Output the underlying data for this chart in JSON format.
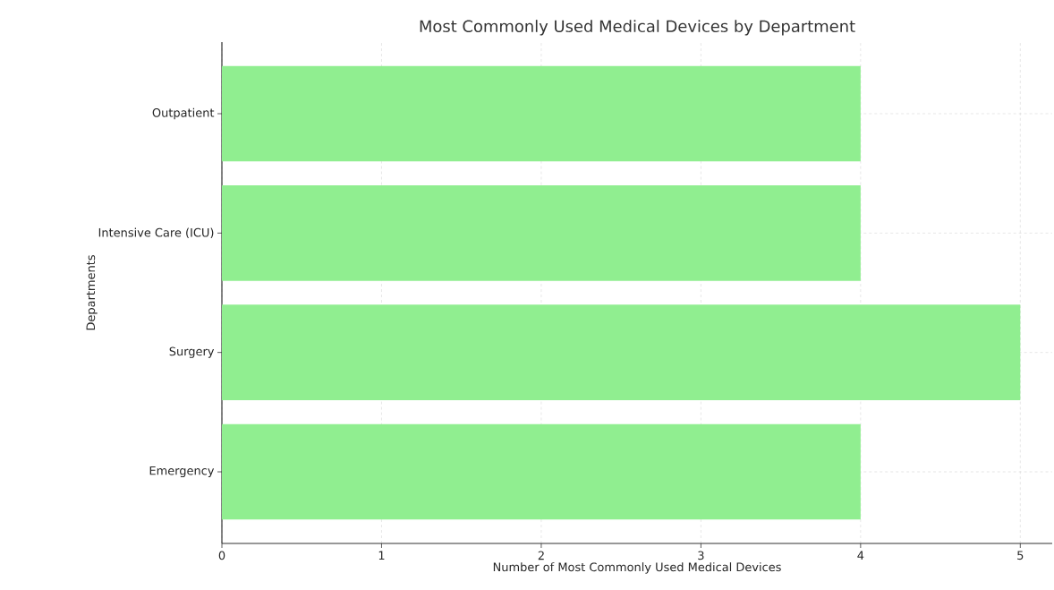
{
  "chart_data": {
    "type": "bar",
    "orientation": "horizontal",
    "title": "Most Commonly Used Medical Devices by Department",
    "xlabel": "Number of Most Commonly Used Medical Devices",
    "ylabel": "Departments",
    "categories": [
      "Outpatient",
      "Intensive Care (ICU)",
      "Surgery",
      "Emergency"
    ],
    "values": [
      4,
      4,
      5,
      4
    ],
    "color": "#90ee90",
    "xlim": [
      0,
      5.2
    ],
    "xticks": [
      0,
      1,
      2,
      3,
      4,
      5
    ],
    "grid": true
  }
}
